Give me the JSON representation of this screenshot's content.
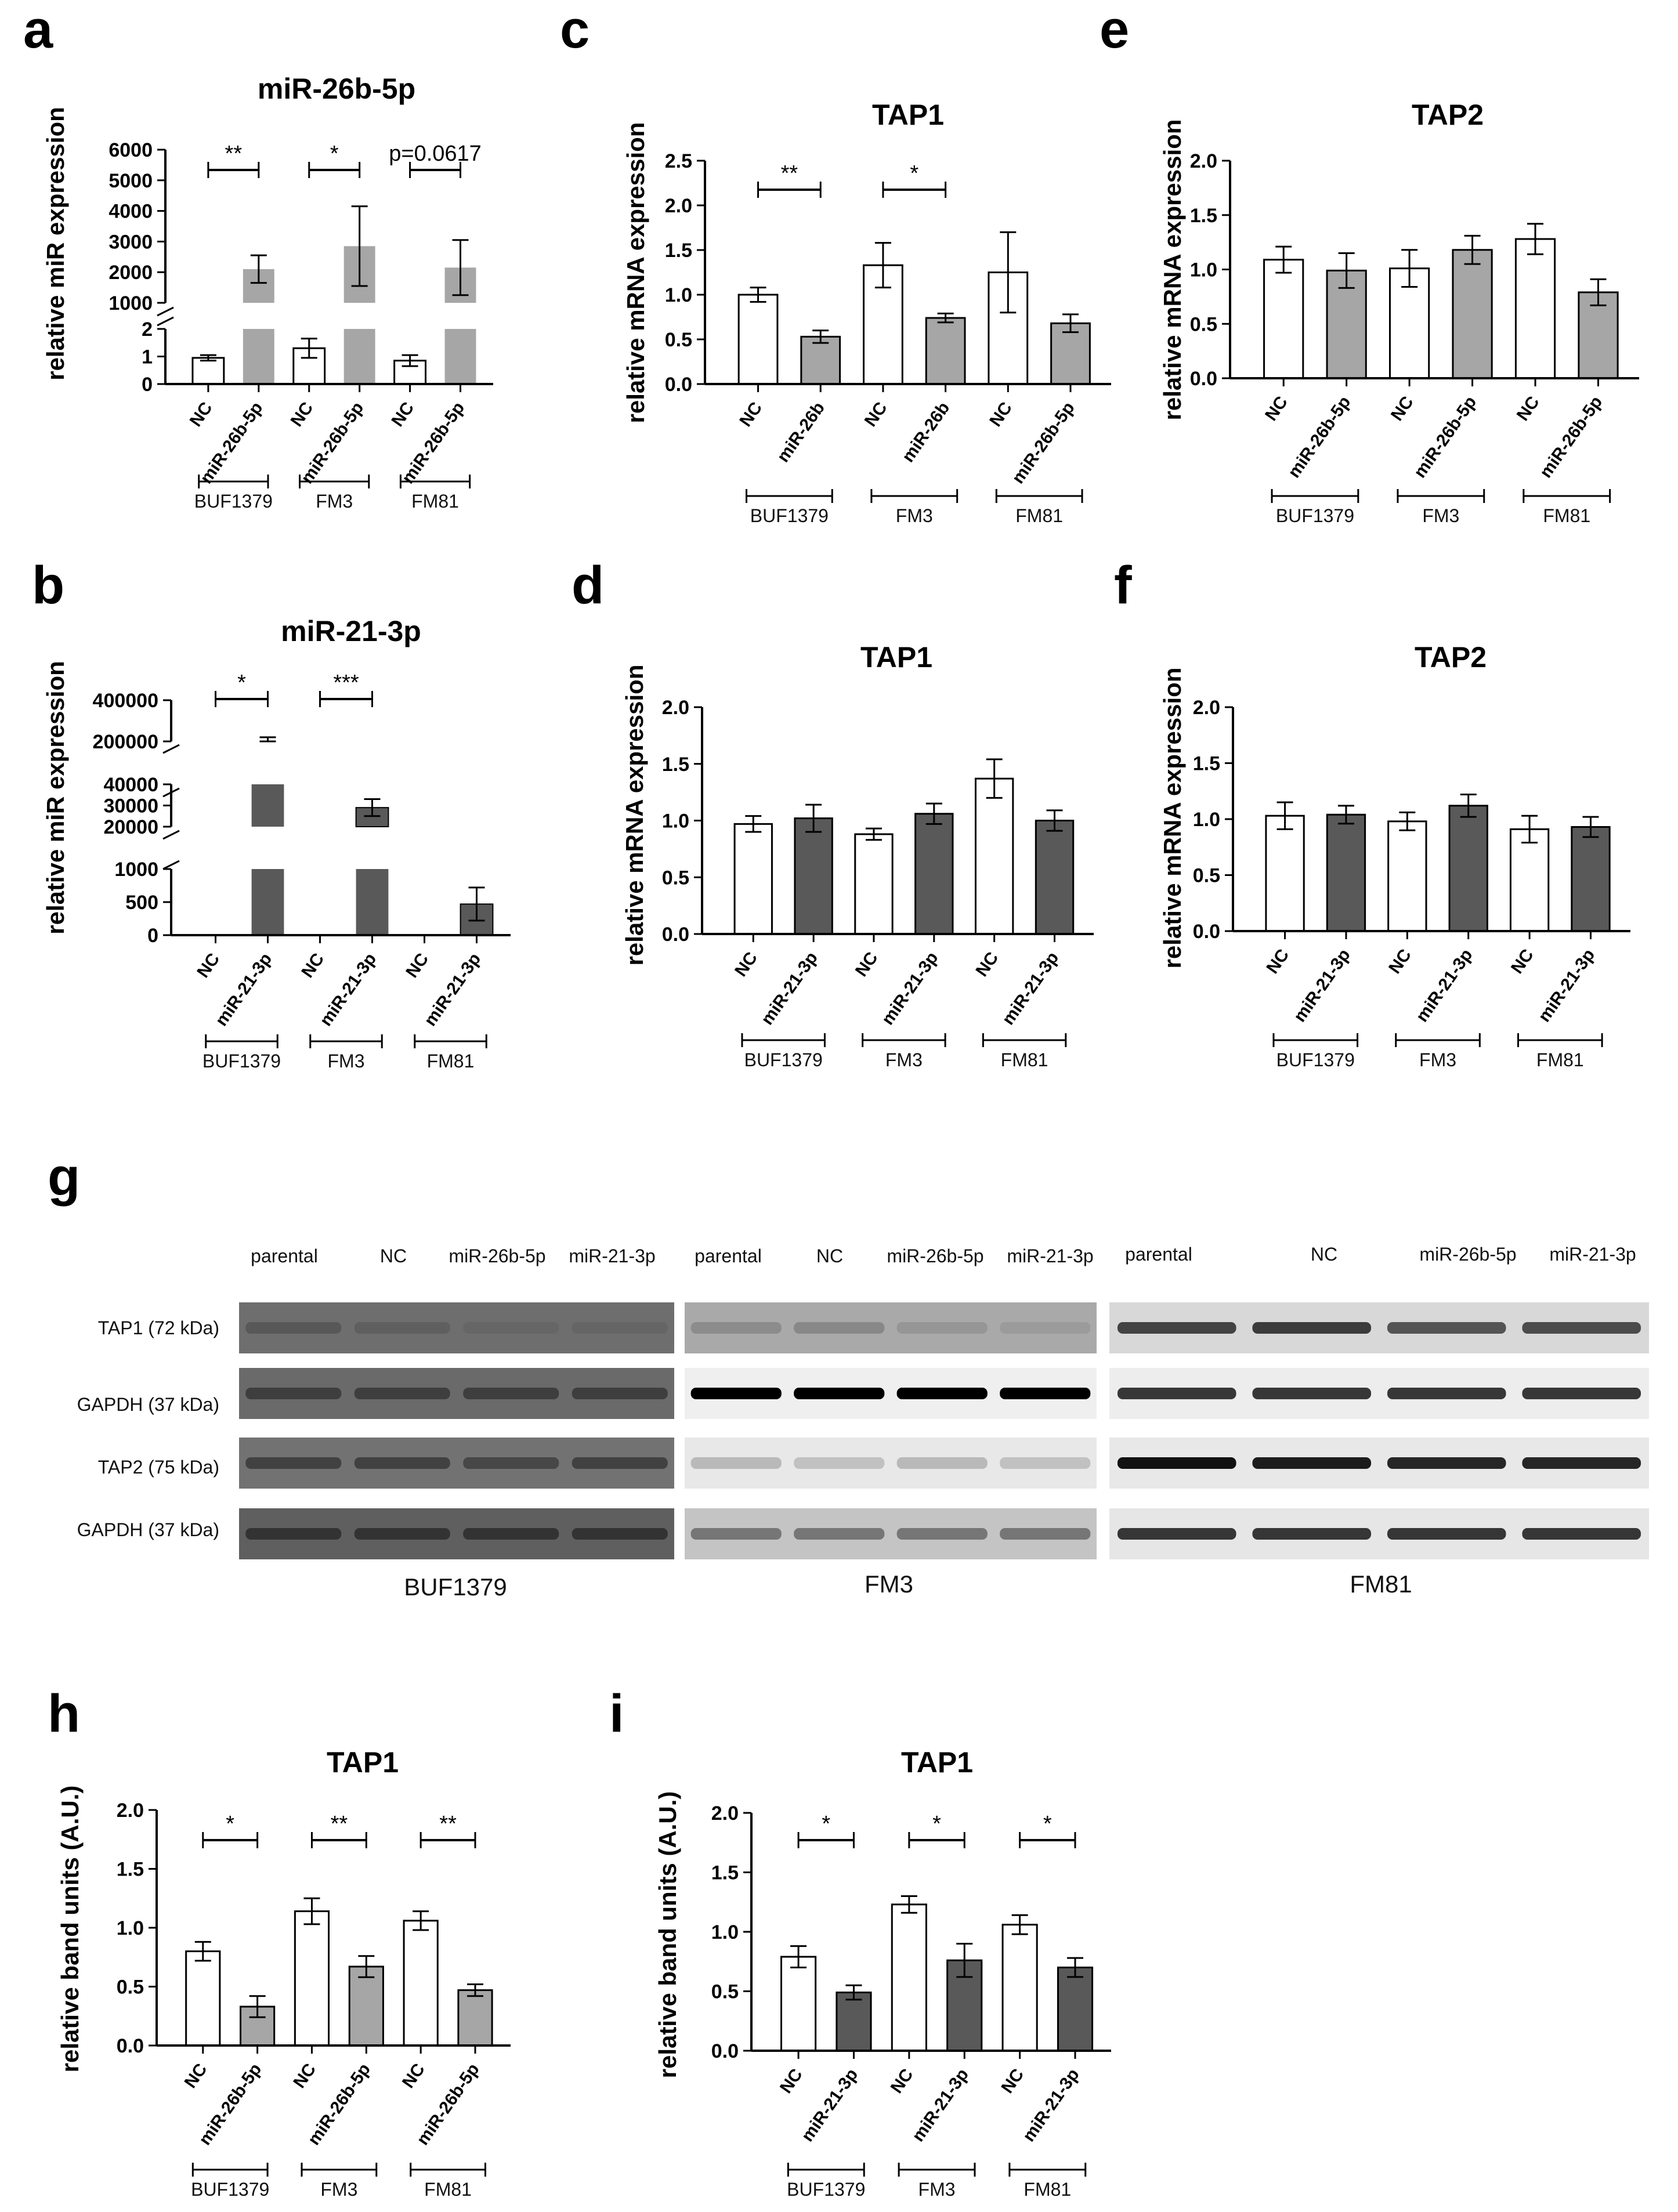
{
  "colors": {
    "nc_fill": "#ffffff",
    "mir26_fill": "#a6a6a6",
    "mir21_fill": "#595959",
    "axis": "#000000"
  },
  "chart_data": [
    {
      "id": "a",
      "panel_label": "a",
      "type": "bar",
      "title": "miR-26b-5p",
      "ylabel": "relative miR expression",
      "axis_break": true,
      "lower_ticks": [
        "0",
        "1",
        "2"
      ],
      "upper_ticks": [
        "1000",
        "2000",
        "3000",
        "4000",
        "5000",
        "6000"
      ],
      "categories": [
        "NC",
        "miR-26b-5p",
        "NC",
        "miR-26b-5p",
        "NC",
        "miR-26b-5p"
      ],
      "groups": [
        "BUF1379",
        "FM3",
        "FM81"
      ],
      "values": [
        0.95,
        2100,
        1.3,
        2850,
        0.85,
        2150
      ],
      "errors": [
        0.1,
        450,
        0.35,
        1300,
        0.2,
        900
      ],
      "series_colors": [
        "nc",
        "mir26",
        "nc",
        "mir26",
        "nc",
        "mir26"
      ],
      "significance": [
        "**",
        "*",
        "p=0.0617"
      ]
    },
    {
      "id": "b",
      "panel_label": "b",
      "type": "bar",
      "title": "miR-21-3p",
      "ylabel": "relative miR expression",
      "axis_break": true,
      "lower_ticks": [
        "0",
        "500",
        "1000"
      ],
      "mid_ticks": [
        "20000",
        "30000",
        "40000"
      ],
      "upper_ticks": [
        "200000",
        "400000"
      ],
      "categories": [
        "NC",
        "miR-21-3p",
        "NC",
        "miR-21-3p",
        "NC",
        "miR-21-3p"
      ],
      "groups": [
        "BUF1379",
        "FM3",
        "FM81"
      ],
      "values": [
        1,
        150000,
        1,
        29000,
        1,
        470
      ],
      "errors": [
        0,
        70000,
        0,
        4000,
        0,
        250
      ],
      "series_colors": [
        "nc",
        "mir21",
        "nc",
        "mir21",
        "nc",
        "mir21"
      ],
      "significance": [
        "*",
        "***",
        ""
      ]
    },
    {
      "id": "c",
      "panel_label": "c",
      "type": "bar",
      "title": "TAP1",
      "ylabel": "relative mRNA expression",
      "ylim": [
        0,
        2.5
      ],
      "ticks": [
        "0.0",
        "0.5",
        "1.0",
        "1.5",
        "2.0",
        "2.5"
      ],
      "categories": [
        "NC",
        "miR-26b",
        "NC",
        "miR-26b",
        "NC",
        "miR-26b-5p"
      ],
      "groups": [
        "BUF1379",
        "FM3",
        "FM81"
      ],
      "values": [
        1.0,
        0.53,
        1.33,
        0.74,
        1.25,
        0.68
      ],
      "errors": [
        0.08,
        0.07,
        0.25,
        0.05,
        0.45,
        0.1
      ],
      "series_colors": [
        "nc",
        "mir26",
        "nc",
        "mir26",
        "nc",
        "mir26"
      ],
      "significance": [
        "**",
        "*",
        ""
      ]
    },
    {
      "id": "d",
      "panel_label": "d",
      "type": "bar",
      "title": "TAP1",
      "ylabel": "relative mRNA expression",
      "ylim": [
        0,
        2.0
      ],
      "ticks": [
        "0.0",
        "0.5",
        "1.0",
        "1.5",
        "2.0"
      ],
      "categories": [
        "NC",
        "miR-21-3p",
        "NC",
        "miR-21-3p",
        "NC",
        "miR-21-3p"
      ],
      "groups": [
        "BUF1379",
        "FM3",
        "FM81"
      ],
      "values": [
        0.97,
        1.02,
        0.88,
        1.06,
        1.37,
        1.0
      ],
      "errors": [
        0.07,
        0.12,
        0.05,
        0.09,
        0.17,
        0.09
      ],
      "series_colors": [
        "nc",
        "mir21",
        "nc",
        "mir21",
        "nc",
        "mir21"
      ],
      "significance": [
        "",
        "",
        ""
      ]
    },
    {
      "id": "e",
      "panel_label": "e",
      "type": "bar",
      "title": "TAP2",
      "ylabel": "relative mRNA expression",
      "ylim": [
        0,
        2.0
      ],
      "ticks": [
        "0.0",
        "0.5",
        "1.0",
        "1.5",
        "2.0"
      ],
      "categories": [
        "NC",
        "miR-26b-5p",
        "NC",
        "miR-26b-5p",
        "NC",
        "miR-26b-5p"
      ],
      "groups": [
        "BUF1379",
        "FM3",
        "FM81"
      ],
      "values": [
        1.09,
        0.99,
        1.01,
        1.18,
        1.28,
        0.79
      ],
      "errors": [
        0.12,
        0.16,
        0.17,
        0.13,
        0.14,
        0.12
      ],
      "series_colors": [
        "nc",
        "mir26",
        "nc",
        "mir26",
        "nc",
        "mir26"
      ],
      "significance": [
        "",
        "",
        ""
      ]
    },
    {
      "id": "f",
      "panel_label": "f",
      "type": "bar",
      "title": "TAP2",
      "ylabel": "relative mRNA expression",
      "ylim": [
        0,
        2.0
      ],
      "ticks": [
        "0.0",
        "0.5",
        "1.0",
        "1.5",
        "2.0"
      ],
      "categories": [
        "NC",
        "miR-21-3p",
        "NC",
        "miR-21-3p",
        "NC",
        "miR-21-3p"
      ],
      "groups": [
        "BUF1379",
        "FM3",
        "FM81"
      ],
      "values": [
        1.03,
        1.04,
        0.98,
        1.12,
        0.91,
        0.93
      ],
      "errors": [
        0.12,
        0.08,
        0.08,
        0.1,
        0.12,
        0.09
      ],
      "series_colors": [
        "nc",
        "mir21",
        "nc",
        "mir21",
        "nc",
        "mir21"
      ],
      "significance": [
        "",
        "",
        ""
      ]
    },
    {
      "id": "h",
      "panel_label": "h",
      "type": "bar",
      "title": "TAP1",
      "ylabel": "relative band units (A.U.)",
      "ylim": [
        0,
        2.0
      ],
      "ticks": [
        "0.0",
        "0.5",
        "1.0",
        "1.5",
        "2.0"
      ],
      "categories": [
        "NC",
        "miR-26b-5p",
        "NC",
        "miR-26b-5p",
        "NC",
        "miR-26b-5p"
      ],
      "groups": [
        "BUF1379",
        "FM3",
        "FM81"
      ],
      "values": [
        0.8,
        0.33,
        1.14,
        0.67,
        1.06,
        0.47
      ],
      "errors": [
        0.08,
        0.09,
        0.11,
        0.09,
        0.08,
        0.05
      ],
      "series_colors": [
        "nc",
        "mir26",
        "nc",
        "mir26",
        "nc",
        "mir26"
      ],
      "significance": [
        "*",
        "**",
        "**"
      ]
    },
    {
      "id": "i",
      "panel_label": "i",
      "type": "bar",
      "title": "TAP1",
      "ylabel": "relative band units (A.U.)",
      "ylim": [
        0,
        2.0
      ],
      "ticks": [
        "0.0",
        "0.5",
        "1.0",
        "1.5",
        "2.0"
      ],
      "categories": [
        "NC",
        "miR-21-3p",
        "NC",
        "miR-21-3p",
        "NC",
        "miR-21-3p"
      ],
      "groups": [
        "BUF1379",
        "FM3",
        "FM81"
      ],
      "values": [
        0.79,
        0.49,
        1.23,
        0.76,
        1.06,
        0.7
      ],
      "errors": [
        0.09,
        0.06,
        0.07,
        0.14,
        0.08,
        0.08
      ],
      "series_colors": [
        "nc",
        "mir21",
        "nc",
        "mir21",
        "nc",
        "mir21"
      ],
      "significance": [
        "*",
        "*",
        "*"
      ]
    }
  ],
  "western_blot": {
    "panel_label": "g",
    "lanes": {
      "BUF1379": [
        "parental",
        "NC",
        "miR-26b-5p",
        "miR-21-3p"
      ],
      "FM3": [
        "parental",
        "NC",
        "miR-26b-5p",
        "miR-21-3p"
      ],
      "FM81": [
        "parental",
        "NC",
        "miR-26b-5p",
        "miR-21-3p"
      ]
    },
    "rows": [
      "TAP1 (72 kDa)",
      "GAPDH (37 kDa)",
      "TAP2 (75 kDa)",
      "GAPDH (37 kDa)"
    ],
    "cell_lines": [
      "BUF1379",
      "FM3",
      "FM81"
    ]
  }
}
